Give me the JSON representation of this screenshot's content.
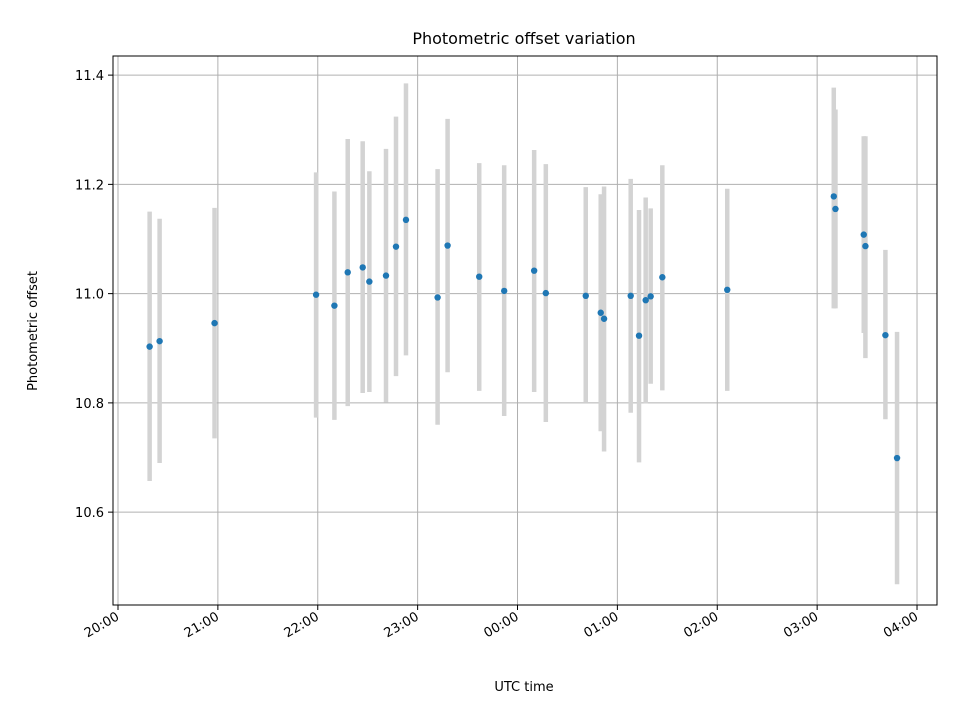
{
  "chart_data": {
    "type": "scatter",
    "title": "Photometric offset variation",
    "xlabel": "UTC time",
    "ylabel": "Photometric offset",
    "x_tick_labels": [
      "20:00",
      "21:00",
      "22:00",
      "23:00",
      "00:00",
      "01:00",
      "02:00",
      "03:00",
      "04:00"
    ],
    "y_tick_labels": [
      "10.6",
      "10.8",
      "11.0",
      "11.2",
      "11.4"
    ],
    "y_ticks": [
      10.6,
      10.8,
      11.0,
      11.2,
      11.4
    ],
    "x_range_hours": [
      19.95,
      28.2
    ],
    "ylim": [
      10.43,
      11.435
    ],
    "grid": true,
    "colors": {
      "point": "#1f77b4",
      "errorbar": "#d3d3d3",
      "grid": "#b0b0b0"
    },
    "points": [
      {
        "time": "20:19",
        "y": 10.903,
        "lo": 10.657,
        "hi": 11.15
      },
      {
        "time": "20:25",
        "y": 10.913,
        "lo": 10.69,
        "hi": 11.137
      },
      {
        "time": "20:58",
        "y": 10.946,
        "lo": 10.735,
        "hi": 11.157
      },
      {
        "time": "21:59",
        "y": 10.998,
        "lo": 10.773,
        "hi": 11.222
      },
      {
        "time": "22:10",
        "y": 10.978,
        "lo": 10.769,
        "hi": 11.187
      },
      {
        "time": "22:18",
        "y": 11.039,
        "lo": 10.794,
        "hi": 11.283
      },
      {
        "time": "22:27",
        "y": 11.048,
        "lo": 10.818,
        "hi": 11.279
      },
      {
        "time": "22:31",
        "y": 11.022,
        "lo": 10.82,
        "hi": 11.224
      },
      {
        "time": "22:41",
        "y": 11.033,
        "lo": 10.801,
        "hi": 11.265
      },
      {
        "time": "22:47",
        "y": 11.086,
        "lo": 10.849,
        "hi": 11.324
      },
      {
        "time": "22:53",
        "y": 11.135,
        "lo": 10.887,
        "hi": 11.385
      },
      {
        "time": "23:12",
        "y": 10.993,
        "lo": 10.76,
        "hi": 11.228
      },
      {
        "time": "23:18",
        "y": 11.088,
        "lo": 10.856,
        "hi": 11.32
      },
      {
        "time": "23:37",
        "y": 11.031,
        "lo": 10.822,
        "hi": 11.239
      },
      {
        "time": "23:52",
        "y": 11.005,
        "lo": 10.776,
        "hi": 11.235
      },
      {
        "time": "00:10",
        "y": 11.042,
        "lo": 10.82,
        "hi": 11.263
      },
      {
        "time": "00:17",
        "y": 11.001,
        "lo": 10.765,
        "hi": 11.237
      },
      {
        "time": "00:41",
        "y": 10.996,
        "lo": 10.8,
        "hi": 11.195
      },
      {
        "time": "00:50",
        "y": 10.965,
        "lo": 10.748,
        "hi": 11.182
      },
      {
        "time": "00:52",
        "y": 10.954,
        "lo": 10.711,
        "hi": 11.196
      },
      {
        "time": "01:08",
        "y": 10.996,
        "lo": 10.782,
        "hi": 11.21
      },
      {
        "time": "01:13",
        "y": 10.923,
        "lo": 10.691,
        "hi": 11.153
      },
      {
        "time": "01:17",
        "y": 10.988,
        "lo": 10.799,
        "hi": 11.176
      },
      {
        "time": "01:20",
        "y": 10.995,
        "lo": 10.835,
        "hi": 11.156
      },
      {
        "time": "01:27",
        "y": 11.03,
        "lo": 10.823,
        "hi": 11.235
      },
      {
        "time": "02:06",
        "y": 11.007,
        "lo": 10.822,
        "hi": 11.192
      },
      {
        "time": "03:10",
        "y": 11.178,
        "lo": 10.973,
        "hi": 11.377
      },
      {
        "time": "03:11",
        "y": 11.155,
        "lo": 10.973,
        "hi": 11.337
      },
      {
        "time": "03:28",
        "y": 11.108,
        "lo": 10.928,
        "hi": 11.288
      },
      {
        "time": "03:29",
        "y": 11.087,
        "lo": 10.882,
        "hi": 11.288
      },
      {
        "time": "03:41",
        "y": 10.924,
        "lo": 10.77,
        "hi": 11.08
      },
      {
        "time": "03:48",
        "y": 10.699,
        "lo": 10.468,
        "hi": 10.93
      }
    ]
  }
}
